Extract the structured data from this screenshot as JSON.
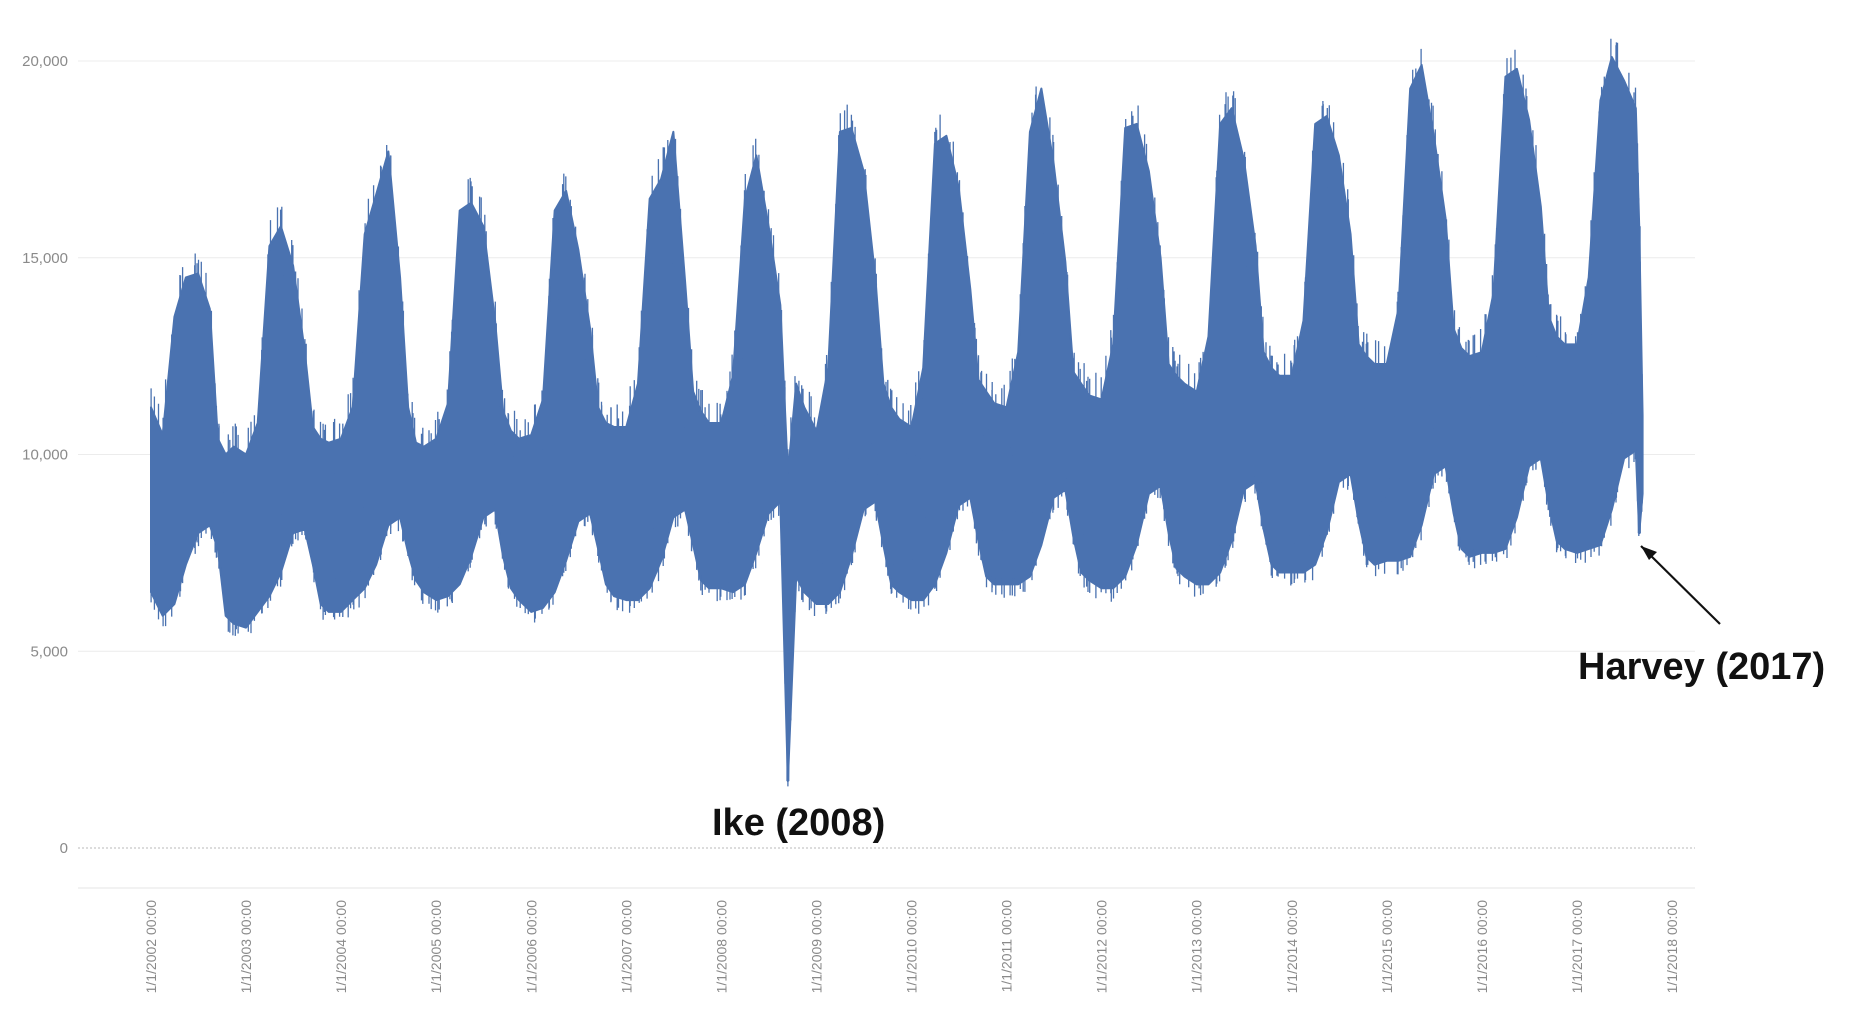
{
  "chart_data": {
    "type": "line",
    "title": "",
    "xlabel": "",
    "ylabel": "",
    "ylim": [
      0,
      20000
    ],
    "yticks": [
      0,
      5000,
      10000,
      15000,
      20000
    ],
    "ytick_labels": [
      "0",
      "5,000",
      "10,000",
      "15,000",
      "20,000"
    ],
    "xtick_labels": [
      "1/1/2002 00:00",
      "1/1/2003 00:00",
      "1/1/2004 00:00",
      "1/1/2005 00:00",
      "1/1/2006 00:00",
      "1/1/2007 00:00",
      "1/1/2008 00:00",
      "1/1/2009 00:00",
      "1/1/2010 00:00",
      "1/1/2011 00:00",
      "1/1/2012 00:00",
      "1/1/2013 00:00",
      "1/1/2014 00:00",
      "1/1/2015 00:00",
      "1/1/2016 00:00",
      "1/1/2017 00:00",
      "1/1/2018 00:00"
    ],
    "xlim": [
      "2002-01-01",
      "2018-01-01"
    ],
    "grid": true,
    "line_color": "#4a72b0",
    "series": [
      {
        "x": [
          "2002-01-01",
          "2002-02-15",
          "2002-04-01",
          "2002-05-15",
          "2002-07-01",
          "2002-08-15",
          "2002-09-15",
          "2002-10-15",
          "2002-11-15",
          "2003-01-01",
          "2003-02-15",
          "2003-04-01",
          "2003-05-15",
          "2003-07-01",
          "2003-08-15",
          "2003-09-15",
          "2003-10-15",
          "2003-11-15",
          "2004-01-01",
          "2004-02-15",
          "2004-04-01",
          "2004-05-15",
          "2004-07-01",
          "2004-08-15",
          "2004-09-15",
          "2004-10-15",
          "2004-11-15",
          "2005-01-01",
          "2005-02-15",
          "2005-04-01",
          "2005-05-15",
          "2005-07-01",
          "2005-08-15",
          "2005-09-15",
          "2005-10-15",
          "2005-11-15",
          "2006-01-01",
          "2006-02-15",
          "2006-04-01",
          "2006-05-15",
          "2006-07-01",
          "2006-08-15",
          "2006-09-15",
          "2006-10-15",
          "2006-11-15",
          "2007-01-01",
          "2007-02-15",
          "2007-04-01",
          "2007-05-15",
          "2007-07-01",
          "2007-08-15",
          "2007-09-15",
          "2007-10-15",
          "2007-11-15",
          "2008-01-01",
          "2008-02-15",
          "2008-04-01",
          "2008-05-15",
          "2008-07-01",
          "2008-08-15",
          "2008-09-13",
          "2008-10-15",
          "2008-11-15",
          "2009-01-01",
          "2009-02-15",
          "2009-04-01",
          "2009-05-15",
          "2009-07-01",
          "2009-08-15",
          "2009-09-15",
          "2009-10-15",
          "2009-11-15",
          "2010-01-01",
          "2010-02-15",
          "2010-04-01",
          "2010-05-15",
          "2010-07-01",
          "2010-08-15",
          "2010-09-15",
          "2010-10-15",
          "2010-11-15",
          "2011-01-01",
          "2011-02-15",
          "2011-04-01",
          "2011-05-15",
          "2011-07-01",
          "2011-08-15",
          "2011-09-15",
          "2011-10-15",
          "2011-11-15",
          "2012-01-01",
          "2012-02-15",
          "2012-04-01",
          "2012-05-15",
          "2012-07-01",
          "2012-08-15",
          "2012-09-15",
          "2012-10-15",
          "2012-11-15",
          "2013-01-01",
          "2013-02-15",
          "2013-04-01",
          "2013-05-15",
          "2013-07-01",
          "2013-08-15",
          "2013-09-15",
          "2013-10-15",
          "2013-11-15",
          "2014-01-01",
          "2014-02-15",
          "2014-04-01",
          "2014-05-15",
          "2014-07-01",
          "2014-08-15",
          "2014-09-15",
          "2014-10-15",
          "2014-11-15",
          "2015-01-01",
          "2015-02-15",
          "2015-04-01",
          "2015-05-15",
          "2015-07-01",
          "2015-08-15",
          "2015-09-15",
          "2015-10-15",
          "2015-11-15",
          "2016-01-01",
          "2016-02-15",
          "2016-04-01",
          "2016-05-15",
          "2016-07-01",
          "2016-08-15",
          "2016-09-15",
          "2016-10-15",
          "2016-11-15",
          "2017-01-01",
          "2017-02-15",
          "2017-04-01",
          "2017-05-15",
          "2017-07-01",
          "2017-08-15",
          "2017-08-28",
          "2017-09-10"
        ],
        "low": [
          6500,
          5900,
          6200,
          7200,
          8000,
          8200,
          7600,
          5900,
          5700,
          5600,
          6000,
          6400,
          7000,
          8000,
          8100,
          7200,
          6200,
          6000,
          6000,
          6300,
          6600,
          7200,
          8200,
          8400,
          7500,
          6800,
          6500,
          6300,
          6400,
          6700,
          7400,
          8400,
          8600,
          7400,
          6600,
          6300,
          6000,
          6100,
          6500,
          7300,
          8300,
          8500,
          7600,
          6700,
          6400,
          6300,
          6300,
          6600,
          7300,
          8400,
          8600,
          7700,
          6800,
          6600,
          6600,
          6500,
          6700,
          7500,
          8500,
          8800,
          1700,
          6900,
          6500,
          6200,
          6200,
          6500,
          7400,
          8600,
          8800,
          7700,
          6700,
          6500,
          6300,
          6300,
          6700,
          7500,
          8700,
          8900,
          7800,
          6900,
          6700,
          6700,
          6700,
          6900,
          7700,
          8900,
          9100,
          7900,
          7000,
          6800,
          6600,
          6600,
          6900,
          7700,
          9000,
          9200,
          8000,
          7100,
          6900,
          6700,
          6700,
          7000,
          7800,
          9100,
          9300,
          8100,
          7200,
          7000,
          7000,
          7000,
          7200,
          8000,
          9300,
          9500,
          8300,
          7400,
          7200,
          7300,
          7300,
          7400,
          8200,
          9500,
          9700,
          8500,
          7600,
          7400,
          7500,
          7500,
          7600,
          8400,
          9700,
          9900,
          8700,
          7800,
          7600,
          7500,
          7600,
          7700,
          8600,
          9900,
          10100,
          8000,
          9000
        ],
        "high": [
          11200,
          10500,
          13500,
          14500,
          14600,
          13700,
          10400,
          10000,
          10200,
          10000,
          10800,
          15300,
          15800,
          14800,
          12600,
          10700,
          10400,
          10300,
          10400,
          11200,
          15600,
          16600,
          17700,
          14500,
          11200,
          10300,
          10200,
          10400,
          11300,
          16200,
          16400,
          15800,
          13400,
          11100,
          10600,
          10400,
          10500,
          11400,
          16200,
          16700,
          15200,
          13200,
          11200,
          10800,
          10700,
          10700,
          11800,
          16500,
          17000,
          18200,
          14400,
          11600,
          11100,
          10800,
          10800,
          12000,
          16500,
          17600,
          15800,
          13800,
          9500,
          11800,
          11200,
          10600,
          12200,
          18200,
          18300,
          17200,
          14500,
          11800,
          11200,
          10900,
          10700,
          12200,
          17900,
          18100,
          16800,
          14200,
          11900,
          11600,
          11300,
          11200,
          12600,
          18200,
          19300,
          17400,
          14900,
          12100,
          11800,
          11500,
          11400,
          12800,
          18300,
          18400,
          17200,
          15000,
          12300,
          12000,
          11800,
          11600,
          13000,
          18400,
          18800,
          17500,
          15300,
          12600,
          12200,
          12000,
          12000,
          13400,
          18400,
          18600,
          17600,
          15600,
          12800,
          12500,
          12300,
          12300,
          13700,
          19300,
          19900,
          18100,
          16000,
          13200,
          12700,
          12500,
          12600,
          14100,
          19600,
          19800,
          18500,
          16300,
          13500,
          13000,
          12800,
          12800,
          14500,
          19000,
          20100,
          19500,
          18800,
          15800,
          11000
        ]
      }
    ],
    "annotations": [
      {
        "text": "Ike (2008)",
        "x": "2008-09-13",
        "y": 1700
      },
      {
        "text": "Harvey (2017)",
        "x": "2017-08-28",
        "y": 8000
      }
    ]
  }
}
